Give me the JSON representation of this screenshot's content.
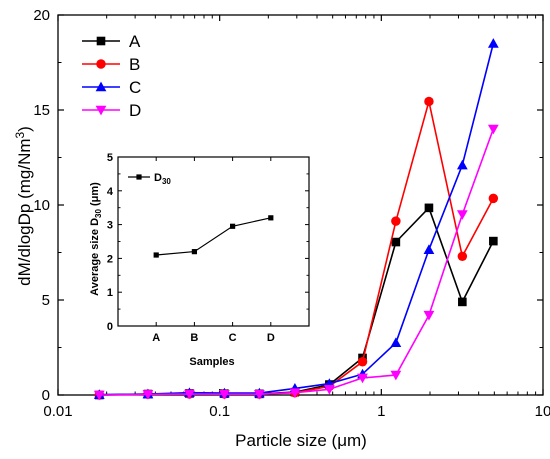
{
  "chart_data": [
    {
      "type": "line",
      "xlabel": "Particle size (μm)",
      "ylabel_main": "dM/dlogDp (mg/Nm",
      "ylabel_sup": "3",
      "ylabel_close": ")",
      "x_scale": "log",
      "xlim": [
        0.01,
        10
      ],
      "ylim": [
        0,
        20
      ],
      "x_ticks": [
        0.01,
        0.1,
        1,
        10
      ],
      "x_tick_labels": [
        "0.01",
        "0.1",
        "1",
        "10"
      ],
      "y_ticks": [
        0,
        5,
        10,
        15,
        20
      ],
      "y_tick_labels": [
        "0",
        "5",
        "10",
        "15",
        "20"
      ],
      "legend_position": "top-left",
      "x": [
        0.018,
        0.036,
        0.065,
        0.107,
        0.176,
        0.292,
        0.477,
        0.765,
        1.23,
        1.97,
        3.17,
        4.93
      ],
      "series": [
        {
          "name": "A",
          "color": "#000000",
          "marker": "square",
          "values": [
            0.0,
            0.05,
            0.08,
            0.07,
            0.06,
            0.15,
            0.55,
            1.95,
            8.05,
            9.85,
            4.9,
            8.1
          ]
        },
        {
          "name": "B",
          "color": "#ff0000",
          "marker": "circle",
          "values": [
            0.0,
            0.04,
            0.06,
            0.06,
            0.05,
            0.12,
            0.45,
            1.75,
            9.15,
            15.45,
            7.3,
            10.35
          ]
        },
        {
          "name": "C",
          "color": "#0000ff",
          "marker": "triangle-up",
          "values": [
            0.02,
            0.05,
            0.12,
            0.1,
            0.1,
            0.35,
            0.6,
            1.1,
            2.75,
            7.65,
            12.1,
            18.5
          ]
        },
        {
          "name": "D",
          "color": "#ff00ff",
          "marker": "triangle-down",
          "values": [
            0.0,
            0.03,
            0.05,
            0.04,
            0.04,
            0.12,
            0.3,
            0.9,
            1.05,
            4.2,
            9.5,
            14.0
          ]
        }
      ]
    },
    {
      "type": "line",
      "xlabel": "Samples",
      "ylabel_main": "Average size D",
      "ylabel_sub": "30",
      "ylabel_close": " (μm)",
      "categories": [
        "A",
        "B",
        "C",
        "D"
      ],
      "ylim": [
        0,
        5
      ],
      "y_ticks": [
        0,
        1,
        2,
        3,
        4,
        5
      ],
      "y_tick_labels": [
        "0",
        "1",
        "2",
        "3",
        "4",
        "5"
      ],
      "legend_position": "top-left",
      "series": [
        {
          "name_main": "D",
          "name_sub": "30",
          "color": "#000000",
          "marker": "square",
          "values": [
            2.1,
            2.2,
            2.95,
            3.2
          ]
        }
      ]
    }
  ]
}
